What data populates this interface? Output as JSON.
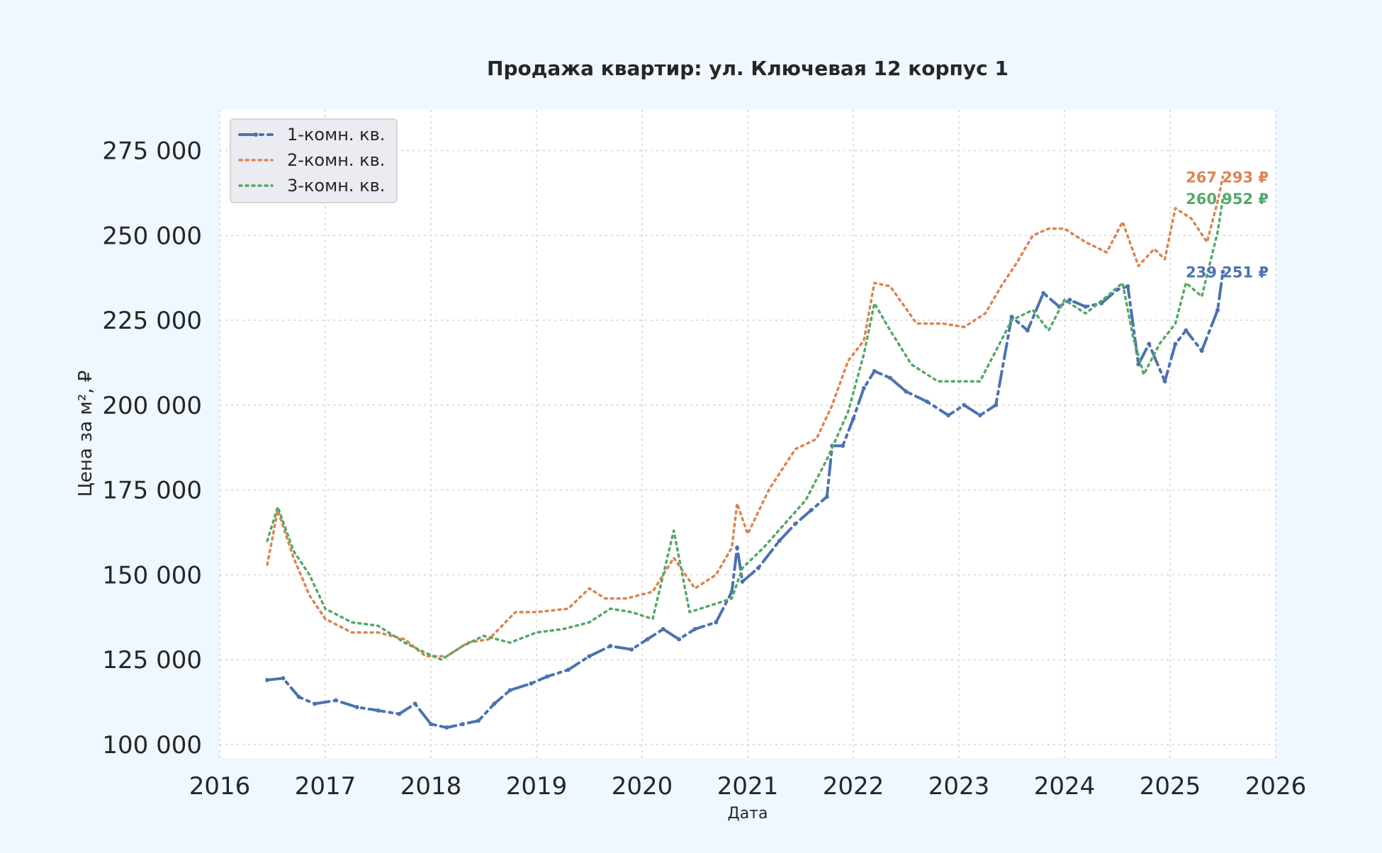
{
  "chart_data": {
    "type": "line",
    "title": "Продажа квартир: ул. Ключевая 12 корпус 1",
    "xlabel": "Дата",
    "ylabel": "Цена за м², ₽",
    "xlim": [
      2016,
      2026
    ],
    "ylim": [
      96000,
      287000
    ],
    "x_ticks": [
      2016,
      2017,
      2018,
      2019,
      2020,
      2021,
      2022,
      2023,
      2024,
      2025,
      2026
    ],
    "x_tick_labels": [
      "2016",
      "2017",
      "2018",
      "2019",
      "2020",
      "2021",
      "2022",
      "2023",
      "2024",
      "2025",
      "2026"
    ],
    "y_ticks": [
      100000,
      125000,
      150000,
      175000,
      200000,
      225000,
      250000,
      275000
    ],
    "y_tick_labels": [
      "100 000",
      "125 000",
      "150 000",
      "175 000",
      "200 000",
      "225 000",
      "250 000",
      "275 000"
    ],
    "grid": true,
    "legend_position": "top-left",
    "series": [
      {
        "name": "1-комн. кв.",
        "color": "#4c72b0",
        "style": "dash-dot-markers",
        "last_value_label": "239 251 ₽",
        "x": [
          2016.45,
          2016.6,
          2016.75,
          2016.9,
          2017.1,
          2017.3,
          2017.5,
          2017.7,
          2017.85,
          2018.0,
          2018.15,
          2018.3,
          2018.45,
          2018.6,
          2018.75,
          2018.95,
          2019.1,
          2019.3,
          2019.5,
          2019.7,
          2019.9,
          2020.05,
          2020.2,
          2020.35,
          2020.5,
          2020.7,
          2020.85,
          2020.9,
          2020.95,
          2021.1,
          2021.3,
          2021.45,
          2021.6,
          2021.75,
          2021.8,
          2021.9,
          2022.0,
          2022.1,
          2022.2,
          2022.35,
          2022.5,
          2022.7,
          2022.9,
          2023.05,
          2023.2,
          2023.35,
          2023.5,
          2023.65,
          2023.8,
          2023.95,
          2024.05,
          2024.2,
          2024.35,
          2024.5,
          2024.6,
          2024.7,
          2024.8,
          2024.95,
          2025.05,
          2025.15,
          2025.3,
          2025.45,
          2025.5
        ],
        "y": [
          119000,
          119500,
          114000,
          112000,
          113000,
          111000,
          110000,
          109000,
          112000,
          106000,
          105000,
          106000,
          107000,
          112000,
          116000,
          118000,
          120000,
          122000,
          126000,
          129000,
          128000,
          131000,
          134000,
          131000,
          134000,
          136000,
          145000,
          158000,
          148000,
          152000,
          160000,
          165000,
          169000,
          173000,
          188000,
          188000,
          196000,
          205000,
          210000,
          208000,
          204000,
          201000,
          197000,
          200000,
          197000,
          200000,
          226000,
          222000,
          233000,
          229000,
          231000,
          229000,
          230000,
          234000,
          235000,
          212000,
          218000,
          207000,
          218000,
          222000,
          216000,
          228000,
          239251
        ]
      },
      {
        "name": "2-комн. кв.",
        "color": "#dd8452",
        "style": "dotted",
        "last_value_label": "267 293 ₽",
        "x": [
          2016.45,
          2016.55,
          2016.7,
          2016.85,
          2017.0,
          2017.25,
          2017.5,
          2017.75,
          2017.95,
          2018.15,
          2018.35,
          2018.55,
          2018.8,
          2019.0,
          2019.3,
          2019.5,
          2019.65,
          2019.85,
          2020.1,
          2020.3,
          2020.5,
          2020.7,
          2020.85,
          2020.9,
          2021.0,
          2021.2,
          2021.45,
          2021.65,
          2021.8,
          2021.95,
          2022.1,
          2022.2,
          2022.35,
          2022.6,
          2022.85,
          2023.05,
          2023.25,
          2023.4,
          2023.55,
          2023.7,
          2023.85,
          2024.0,
          2024.2,
          2024.4,
          2024.55,
          2024.7,
          2024.85,
          2024.95,
          2025.05,
          2025.2,
          2025.35,
          2025.45,
          2025.5
        ],
        "y": [
          153000,
          169000,
          155000,
          144000,
          137000,
          133000,
          133000,
          131000,
          126000,
          126000,
          130000,
          131000,
          139000,
          139000,
          140000,
          146000,
          143000,
          143000,
          145000,
          155000,
          146000,
          150000,
          158000,
          171000,
          162000,
          175000,
          187000,
          190000,
          200000,
          213000,
          219000,
          236000,
          235000,
          224000,
          224000,
          223000,
          227000,
          235000,
          242000,
          250000,
          252000,
          252000,
          248000,
          245000,
          254000,
          241000,
          246000,
          243000,
          258000,
          255000,
          248000,
          260000,
          267293
        ]
      },
      {
        "name": "3-комн. кв.",
        "color": "#55a868",
        "style": "dotted",
        "last_value_label": "260 952 ₽",
        "x": [
          2016.45,
          2016.55,
          2016.7,
          2016.85,
          2017.0,
          2017.25,
          2017.5,
          2017.75,
          2017.95,
          2018.1,
          2018.3,
          2018.5,
          2018.75,
          2019.0,
          2019.25,
          2019.5,
          2019.7,
          2019.9,
          2020.1,
          2020.3,
          2020.45,
          2020.65,
          2020.85,
          2020.95,
          2021.15,
          2021.35,
          2021.55,
          2021.75,
          2021.95,
          2022.1,
          2022.2,
          2022.35,
          2022.55,
          2022.8,
          2023.0,
          2023.2,
          2023.4,
          2023.5,
          2023.7,
          2023.85,
          2024.0,
          2024.2,
          2024.4,
          2024.55,
          2024.65,
          2024.75,
          2024.9,
          2025.05,
          2025.15,
          2025.3,
          2025.45,
          2025.5
        ],
        "y": [
          160000,
          170000,
          157000,
          150000,
          140000,
          136000,
          135000,
          130000,
          127000,
          125000,
          129000,
          132000,
          130000,
          133000,
          134000,
          136000,
          140000,
          139000,
          137000,
          163000,
          139000,
          141000,
          143000,
          152000,
          158000,
          165000,
          172000,
          184000,
          198000,
          215000,
          230000,
          222000,
          212000,
          207000,
          207000,
          207000,
          219000,
          225000,
          228000,
          222000,
          231000,
          227000,
          232000,
          236000,
          220000,
          209000,
          218000,
          224000,
          236000,
          232000,
          251000,
          260952
        ]
      }
    ]
  }
}
